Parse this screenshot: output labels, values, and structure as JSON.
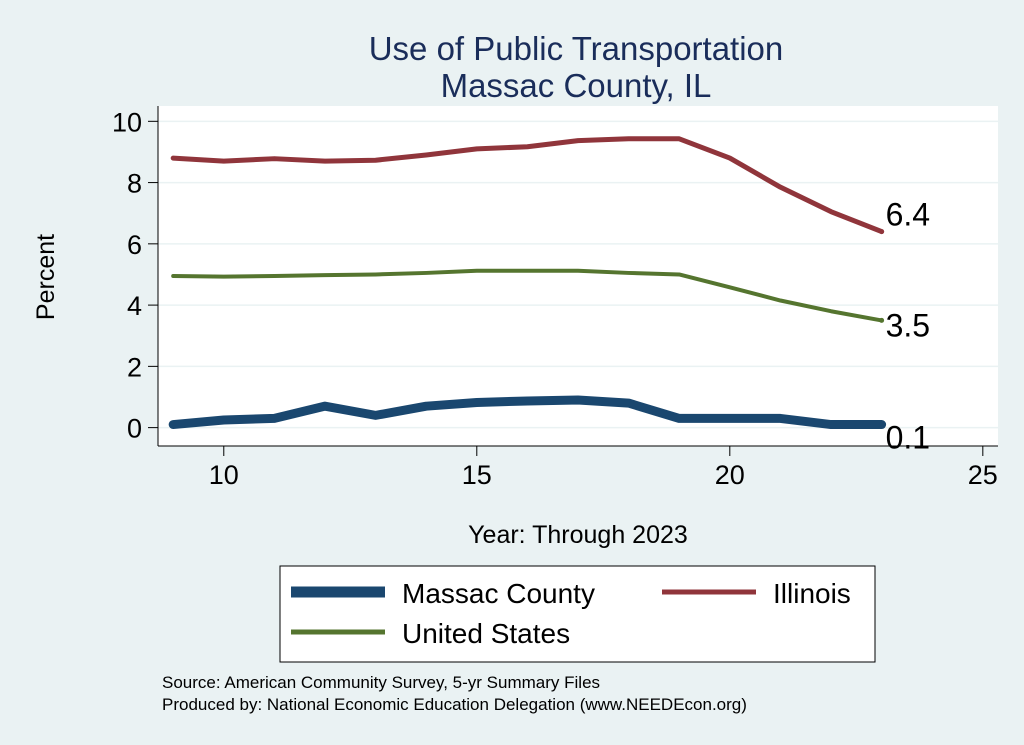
{
  "chart_data": {
    "type": "line",
    "title": "Use of Public Transportation",
    "subtitle": "Massac County, IL",
    "xlabel": "Year: Through 2023",
    "ylabel": "Percent",
    "xlim": [
      8.7,
      25.3
    ],
    "ylim": [
      -0.6,
      10.5
    ],
    "xticks": [
      10,
      15,
      20,
      25
    ],
    "yticks": [
      0,
      2,
      4,
      6,
      8,
      10
    ],
    "grid": true,
    "legend_position": "bottom",
    "x": [
      9,
      10,
      11,
      12,
      13,
      14,
      15,
      16,
      17,
      18,
      19,
      20,
      21,
      22,
      23
    ],
    "series": [
      {
        "name": "Massac County",
        "color": "#1a476f",
        "values": [
          0.1,
          0.25,
          0.3,
          0.7,
          0.4,
          0.7,
          0.82,
          0.87,
          0.9,
          0.8,
          0.3,
          0.3,
          0.3,
          0.1,
          0.1
        ],
        "end_label": "0.1"
      },
      {
        "name": "Illinois",
        "color": "#90353b",
        "values": [
          8.8,
          8.7,
          8.78,
          8.7,
          8.73,
          8.9,
          9.1,
          9.17,
          9.37,
          9.43,
          9.43,
          8.8,
          7.85,
          7.05,
          6.4
        ],
        "end_label": "6.4"
      },
      {
        "name": "United States",
        "color": "#55752f",
        "values": [
          4.95,
          4.93,
          4.95,
          4.98,
          5.0,
          5.05,
          5.12,
          5.12,
          5.12,
          5.05,
          5.0,
          4.58,
          4.15,
          3.8,
          3.5
        ],
        "end_label": "3.5"
      }
    ],
    "source_note": "Source: American Community Survey, 5-yr Summary Files",
    "produced_note": "Produced by: National Economic Education Delegation (www.NEEDEcon.org)"
  }
}
